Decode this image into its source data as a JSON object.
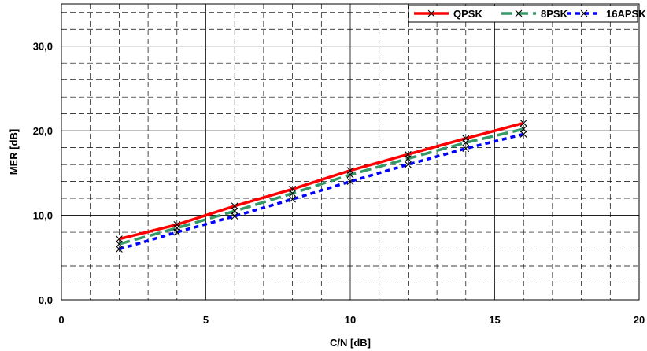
{
  "chart_data": {
    "type": "line",
    "title": "",
    "xlabel": "C/N [dB]",
    "ylabel": "MER [dB]",
    "xlim": [
      0,
      20
    ],
    "ylim": [
      0,
      35
    ],
    "x_ticks": [
      "0",
      "5",
      "10",
      "15",
      "20"
    ],
    "y_ticks": [
      "0,0",
      "10,0",
      "20,0",
      "30,0"
    ],
    "grid": "major solid, minor dashed",
    "legend_position": "top-right",
    "x": [
      2,
      4,
      6,
      8,
      10,
      12,
      14,
      16
    ],
    "series": [
      {
        "name": "QPSK",
        "color": "#ff0000",
        "dash": "solid",
        "values": [
          7.2,
          8.9,
          11.1,
          13.1,
          15.3,
          17.2,
          19.1,
          20.9
        ]
      },
      {
        "name": "8PSK",
        "color": "#339966",
        "dash": "long-dash",
        "values": [
          6.6,
          8.5,
          10.5,
          12.6,
          14.8,
          16.7,
          18.6,
          20.2
        ]
      },
      {
        "name": "16APSK",
        "color": "#0000ff",
        "dash": "short-dash",
        "values": [
          6.0,
          8.0,
          9.9,
          11.9,
          14.0,
          16.0,
          17.9,
          19.6
        ]
      }
    ]
  }
}
